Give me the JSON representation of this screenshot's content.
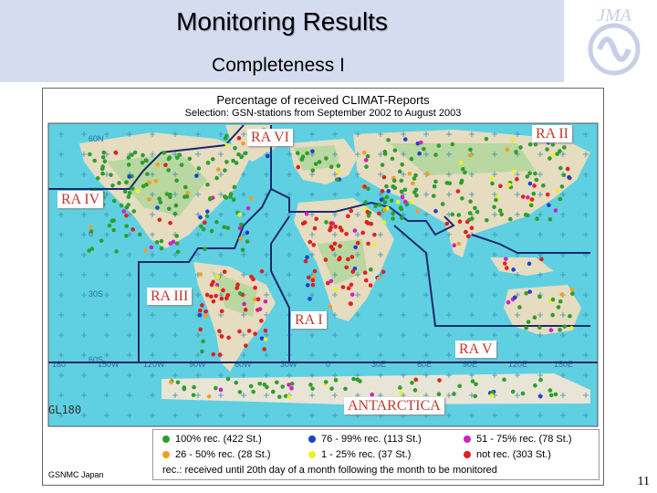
{
  "header": {
    "title": "Monitoring Results",
    "subtitle": "Completeness I",
    "logo_text": "JMA"
  },
  "map": {
    "title": "Percentage of received CLIMAT-Reports",
    "selection": "Selection: GSN-stations from September 2002 to August 2003",
    "regions": {
      "ra1": "RA I",
      "ra2": "RA II",
      "ra3": "RA III",
      "ra4": "RA IV",
      "ra5": "RA V",
      "ra6": "RA VI",
      "antarctica": "ANTARCTICA"
    },
    "lat_labels": [
      "60N",
      "30N",
      "0",
      "30S",
      "60S"
    ],
    "lon_labels": [
      "180",
      "150W",
      "120W",
      "90W",
      "60W",
      "30W",
      "0",
      "30E",
      "60E",
      "90E",
      "120E",
      "150E"
    ],
    "colors": {
      "ocean": "#5fd0e2",
      "land": "#e6dcc0",
      "land_green": "#b9d7a0",
      "boundary": "#1a2a6c"
    }
  },
  "legend": {
    "items": [
      {
        "label": "100% rec. (422 St.)",
        "color": "#2e9e2e"
      },
      {
        "label": "76 - 99% rec. (113 St.)",
        "color": "#1f3fd0"
      },
      {
        "label": "51 - 75% rec. (78 St.)",
        "color": "#d020c0"
      },
      {
        "label": "26 - 50% rec. (28 St.)",
        "color": "#f0a020"
      },
      {
        "label": "1 - 25% rec. (37 St.)",
        "color": "#f0f020"
      },
      {
        "label": "not rec. (303 St.)",
        "color": "#e02020"
      }
    ],
    "note": "rec.: received until 20th day of a month following the month to be monitored"
  },
  "footer": {
    "gl_label": "GL180",
    "credit": "GSNMC Japan",
    "page_number": "11"
  }
}
